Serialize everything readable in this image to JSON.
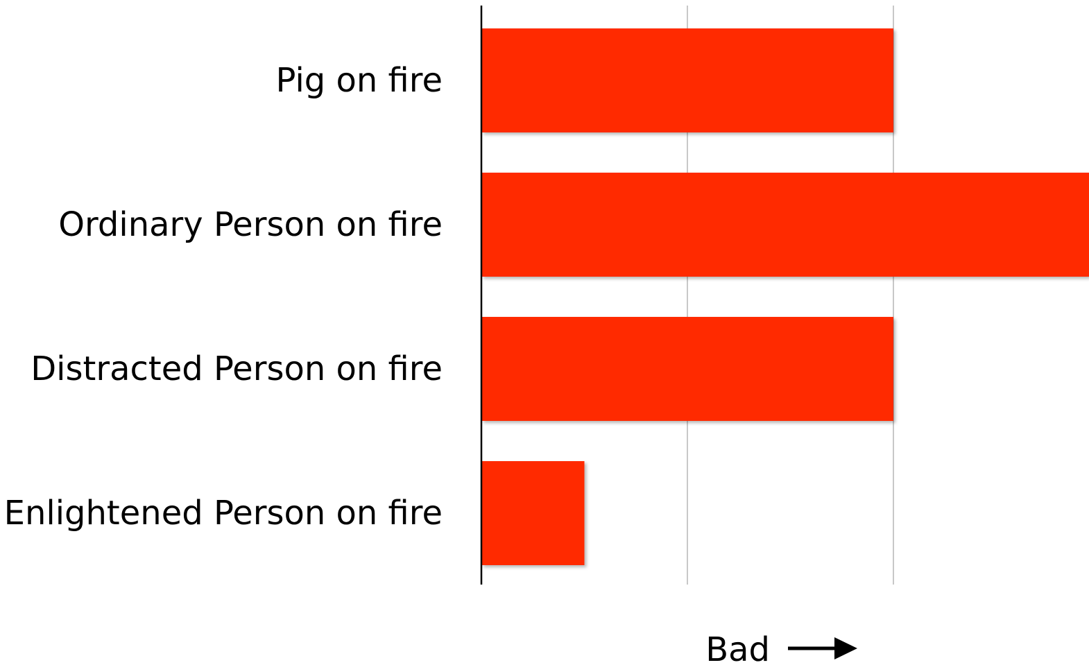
{
  "chart_data": {
    "type": "bar",
    "orientation": "horizontal",
    "categories": [
      "Pig on fire",
      "Ordinary Person on fire",
      "Distracted Person on fire",
      "Enlightened Person on fire"
    ],
    "values": [
      2,
      3,
      2,
      0.5
    ],
    "xlim": [
      0,
      2.93
    ],
    "gridlines_at": [
      1,
      2
    ],
    "grid": true,
    "xlabel": "Bad",
    "xlabel_arrow": "right-arrow",
    "title": "",
    "ylabel": "",
    "bar_color": "#ff2a00",
    "axis_color": "#000000",
    "grid_color": "#c8c8c8"
  }
}
